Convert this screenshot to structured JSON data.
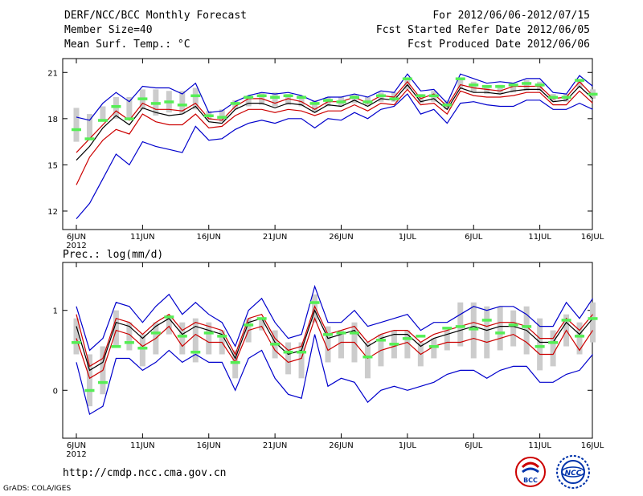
{
  "header": {
    "title": "DERF/NCC/BCC Monthly Forecast",
    "member_size": "Member Size=40",
    "variable": "Mean Surf. Temp.: °C",
    "period": "For 2012/06/06-2012/07/15",
    "start_refer": "Fcst Started Refer Date 2012/06/05",
    "produced": "Fcst Produced Date 2012/06/06"
  },
  "footer": {
    "url": "http://cmdp.ncc.cma.gov.cn",
    "credit": "GrADS: COLA/IGES",
    "logo_left_text": "BCC",
    "logo_right_text": "NCC"
  },
  "colors": {
    "max_min": "#0000cc",
    "mean": "#000000",
    "spread": "#cc0000",
    "observed_mark": "#55ee55",
    "box": "#cccccc"
  },
  "chart_data": [
    {
      "type": "line",
      "name": "temperature",
      "ylabel": "Mean Surf. Temp.: °C",
      "ylim": [
        10.8,
        21.9
      ],
      "yticks": [
        12,
        15,
        18,
        21
      ],
      "xlim": [
        6,
        46
      ],
      "xticks": [
        {
          "x": 6,
          "label": "6JUN",
          "sub": "2012"
        },
        {
          "x": 11,
          "label": "11JUN"
        },
        {
          "x": 16,
          "label": "16JUN"
        },
        {
          "x": 21,
          "label": "21JUN"
        },
        {
          "x": 26,
          "label": "26JUN"
        },
        {
          "x": 31,
          "label": "1JUL"
        },
        {
          "x": 36,
          "label": "6JUL"
        },
        {
          "x": 41,
          "label": "11JUL"
        },
        {
          "x": 46,
          "label": "16JUL"
        }
      ],
      "x": [
        6,
        7,
        8,
        9,
        10,
        11,
        12,
        13,
        14,
        15,
        16,
        17,
        18,
        19,
        20,
        21,
        22,
        23,
        24,
        25,
        26,
        27,
        28,
        29,
        30,
        31,
        32,
        33,
        34,
        35,
        36,
        37,
        38,
        39,
        40,
        41,
        42,
        43,
        44,
        45
      ],
      "series": [
        {
          "name": "max",
          "values": [
            18.1,
            17.9,
            19.0,
            19.7,
            19.1,
            20.1,
            20.0,
            20.0,
            19.6,
            20.3,
            18.4,
            18.5,
            19.1,
            19.5,
            19.7,
            19.6,
            19.7,
            19.5,
            19.1,
            19.4,
            19.4,
            19.6,
            19.4,
            19.8,
            19.7,
            20.9,
            19.8,
            19.9,
            19.0,
            20.9,
            20.6,
            20.3,
            20.4,
            20.3,
            20.6,
            20.6,
            19.7,
            19.6,
            20.8,
            20.1
          ]
        },
        {
          "name": "upper",
          "values": [
            15.8,
            16.7,
            17.6,
            18.5,
            17.9,
            19.0,
            18.6,
            18.6,
            18.5,
            19.0,
            18.0,
            17.9,
            18.8,
            19.3,
            19.3,
            19.0,
            19.3,
            19.1,
            18.6,
            19.1,
            19.1,
            19.4,
            19.0,
            19.5,
            19.4,
            20.4,
            19.3,
            19.6,
            18.8,
            20.2,
            20.0,
            19.9,
            19.8,
            20.1,
            20.1,
            20.1,
            19.3,
            19.4,
            20.4,
            19.5
          ]
        },
        {
          "name": "mean",
          "values": [
            15.3,
            16.2,
            17.4,
            18.2,
            17.6,
            18.7,
            18.4,
            18.2,
            18.3,
            18.8,
            17.8,
            17.7,
            18.6,
            19.0,
            19.0,
            18.7,
            19.0,
            18.9,
            18.4,
            18.9,
            18.8,
            19.2,
            18.8,
            19.3,
            19.2,
            20.2,
            19.1,
            19.3,
            18.6,
            20.0,
            19.7,
            19.7,
            19.6,
            19.8,
            19.9,
            19.9,
            19.1,
            19.2,
            20.1,
            19.3
          ]
        },
        {
          "name": "lower",
          "values": [
            13.7,
            15.5,
            16.6,
            17.3,
            17.0,
            18.3,
            17.8,
            17.6,
            17.6,
            18.3,
            17.4,
            17.5,
            18.2,
            18.6,
            18.6,
            18.4,
            18.6,
            18.5,
            18.2,
            18.5,
            18.5,
            18.9,
            18.5,
            19.0,
            18.9,
            19.9,
            18.9,
            19.0,
            18.3,
            19.8,
            19.5,
            19.4,
            19.4,
            19.5,
            19.7,
            19.7,
            18.9,
            18.9,
            19.8,
            19.0
          ]
        },
        {
          "name": "min",
          "values": [
            11.5,
            12.5,
            14.1,
            15.7,
            15.0,
            16.5,
            16.2,
            16.0,
            15.8,
            17.5,
            16.6,
            16.7,
            17.3,
            17.7,
            17.9,
            17.7,
            18.0,
            18.0,
            17.4,
            18.0,
            17.9,
            18.4,
            18.0,
            18.6,
            18.8,
            19.6,
            18.3,
            18.6,
            17.7,
            19.0,
            19.1,
            18.9,
            18.8,
            18.8,
            19.2,
            19.2,
            18.6,
            18.6,
            19.0,
            18.6
          ]
        },
        {
          "name": "box_high",
          "values": [
            18.7,
            18.3,
            18.8,
            19.4,
            19.4,
            19.9,
            19.9,
            19.8,
            19.8,
            20.0,
            18.5,
            18.6,
            19.2,
            19.5,
            19.7,
            19.7,
            19.6,
            19.5,
            19.2,
            19.4,
            19.4,
            19.6,
            19.4,
            19.7,
            19.7,
            20.6,
            19.6,
            19.8,
            19.2,
            20.5,
            20.4,
            20.1,
            20.2,
            20.2,
            20.5,
            20.4,
            19.6,
            19.6,
            20.5,
            19.9
          ]
        },
        {
          "name": "box_low",
          "values": [
            16.5,
            16.6,
            17.9,
            18.0,
            17.9,
            18.6,
            18.2,
            18.4,
            18.3,
            18.6,
            17.9,
            17.8,
            18.6,
            18.8,
            18.9,
            18.8,
            18.9,
            18.8,
            18.4,
            18.8,
            18.8,
            19.0,
            18.8,
            19.1,
            19.1,
            19.9,
            19.0,
            19.1,
            18.6,
            20.0,
            19.7,
            19.6,
            19.6,
            19.7,
            19.8,
            19.8,
            19.1,
            19.1,
            20.0,
            19.3
          ]
        },
        {
          "name": "observed",
          "values": [
            17.3,
            16.7,
            17.9,
            18.8,
            18.0,
            19.3,
            19.0,
            19.1,
            18.9,
            19.5,
            18.2,
            18.1,
            19.0,
            19.4,
            19.5,
            19.4,
            19.5,
            19.4,
            19.0,
            19.2,
            19.1,
            19.4,
            19.1,
            19.5,
            19.3,
            20.6,
            19.5,
            19.5,
            18.9,
            20.6,
            20.2,
            20.1,
            20.1,
            20.2,
            20.3,
            20.2,
            19.4,
            19.4,
            20.5,
            19.6
          ]
        }
      ]
    },
    {
      "type": "line",
      "name": "precipitation",
      "ylabel": "Prec.: log(mm/d)",
      "ylim": [
        -0.6,
        1.6
      ],
      "yticks": [
        0,
        1
      ],
      "xlim": [
        6,
        46
      ],
      "xticks": [
        {
          "x": 6,
          "label": "6JUN",
          "sub": "2012"
        },
        {
          "x": 11,
          "label": "11JUN"
        },
        {
          "x": 16,
          "label": "16JUN"
        },
        {
          "x": 21,
          "label": "21JUN"
        },
        {
          "x": 26,
          "label": "26JUN"
        },
        {
          "x": 31,
          "label": "1JUL"
        },
        {
          "x": 36,
          "label": "6JUL"
        },
        {
          "x": 41,
          "label": "11JUL"
        },
        {
          "x": 46,
          "label": "16JUL"
        }
      ],
      "x": [
        6,
        7,
        8,
        9,
        10,
        11,
        12,
        13,
        14,
        15,
        16,
        17,
        18,
        19,
        20,
        21,
        22,
        23,
        24,
        25,
        26,
        27,
        28,
        29,
        30,
        31,
        32,
        33,
        34,
        35,
        36,
        37,
        38,
        39,
        40,
        41,
        42,
        43,
        44,
        45
      ],
      "series": [
        {
          "name": "max",
          "values": [
            1.05,
            0.5,
            0.65,
            1.1,
            1.05,
            0.85,
            1.05,
            1.2,
            0.95,
            1.1,
            0.95,
            0.85,
            0.55,
            1.0,
            1.15,
            0.85,
            0.65,
            0.7,
            1.3,
            0.85,
            0.85,
            1.0,
            0.8,
            0.85,
            0.9,
            0.95,
            0.75,
            0.85,
            0.85,
            0.95,
            1.05,
            1.0,
            1.05,
            1.05,
            0.95,
            0.8,
            0.8,
            1.1,
            0.9,
            1.15
          ]
        },
        {
          "name": "upper",
          "values": [
            0.95,
            0.3,
            0.4,
            0.9,
            0.85,
            0.7,
            0.85,
            0.95,
            0.75,
            0.85,
            0.8,
            0.75,
            0.45,
            0.9,
            0.95,
            0.65,
            0.5,
            0.55,
            1.05,
            0.7,
            0.75,
            0.8,
            0.6,
            0.7,
            0.75,
            0.75,
            0.6,
            0.7,
            0.75,
            0.8,
            0.85,
            0.8,
            0.85,
            0.85,
            0.8,
            0.65,
            0.65,
            0.9,
            0.75,
            0.95
          ]
        },
        {
          "name": "mean",
          "values": [
            0.8,
            0.25,
            0.35,
            0.85,
            0.8,
            0.65,
            0.8,
            0.9,
            0.7,
            0.8,
            0.75,
            0.7,
            0.4,
            0.85,
            0.9,
            0.6,
            0.45,
            0.5,
            1.0,
            0.65,
            0.7,
            0.75,
            0.55,
            0.65,
            0.7,
            0.7,
            0.55,
            0.65,
            0.7,
            0.75,
            0.8,
            0.75,
            0.8,
            0.8,
            0.75,
            0.6,
            0.6,
            0.85,
            0.7,
            0.9
          ]
        },
        {
          "name": "lower",
          "values": [
            0.65,
            0.15,
            0.25,
            0.75,
            0.7,
            0.55,
            0.65,
            0.8,
            0.55,
            0.7,
            0.6,
            0.6,
            0.35,
            0.75,
            0.8,
            0.5,
            0.35,
            0.4,
            0.9,
            0.5,
            0.6,
            0.6,
            0.4,
            0.5,
            0.55,
            0.6,
            0.45,
            0.55,
            0.6,
            0.6,
            0.65,
            0.6,
            0.65,
            0.7,
            0.6,
            0.45,
            0.45,
            0.75,
            0.5,
            0.75
          ]
        },
        {
          "name": "min",
          "values": [
            0.35,
            -0.3,
            -0.2,
            0.4,
            0.4,
            0.25,
            0.35,
            0.5,
            0.35,
            0.45,
            0.35,
            0.35,
            0.0,
            0.4,
            0.5,
            0.15,
            -0.05,
            -0.1,
            0.7,
            0.05,
            0.15,
            0.1,
            -0.15,
            0.0,
            0.05,
            0.0,
            0.05,
            0.1,
            0.2,
            0.25,
            0.25,
            0.15,
            0.25,
            0.3,
            0.3,
            0.1,
            0.1,
            0.2,
            0.25,
            0.45
          ]
        },
        {
          "name": "box_high",
          "values": [
            0.9,
            0.45,
            0.55,
            1.0,
            0.85,
            0.7,
            0.85,
            0.9,
            0.85,
            0.9,
            0.85,
            0.75,
            0.5,
            0.9,
            0.9,
            0.75,
            0.6,
            0.6,
            1.2,
            0.8,
            0.75,
            0.85,
            0.6,
            0.7,
            0.75,
            0.75,
            0.6,
            0.65,
            0.75,
            1.1,
            1.1,
            1.05,
            1.05,
            1.0,
            1.05,
            0.9,
            0.75,
            0.95,
            0.85,
            1.1
          ]
        },
        {
          "name": "box_low",
          "values": [
            0.45,
            -0.2,
            -0.05,
            0.55,
            0.5,
            0.3,
            0.45,
            0.7,
            0.45,
            0.35,
            0.45,
            0.45,
            0.15,
            0.6,
            0.75,
            0.4,
            0.2,
            0.15,
            0.85,
            0.35,
            0.4,
            0.35,
            0.15,
            0.3,
            0.4,
            0.4,
            0.3,
            0.4,
            0.5,
            0.55,
            0.4,
            0.4,
            0.5,
            0.55,
            0.45,
            0.25,
            0.3,
            0.55,
            0.45,
            0.6
          ]
        },
        {
          "name": "observed",
          "values": [
            0.6,
            0.0,
            0.1,
            0.55,
            0.6,
            0.53,
            0.72,
            0.92,
            0.68,
            0.48,
            0.72,
            0.68,
            0.35,
            0.82,
            0.9,
            0.58,
            0.48,
            0.48,
            1.1,
            0.7,
            0.72,
            0.72,
            0.42,
            0.63,
            0.58,
            0.65,
            0.68,
            0.55,
            0.78,
            0.8,
            0.77,
            0.88,
            0.72,
            0.82,
            0.8,
            0.55,
            0.6,
            0.88,
            0.68,
            0.9
          ]
        }
      ]
    }
  ]
}
